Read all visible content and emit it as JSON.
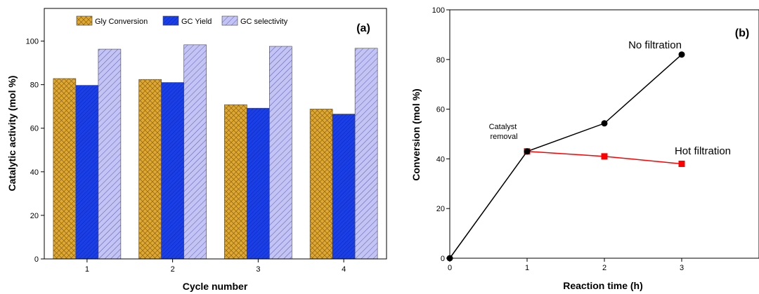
{
  "chart_data": [
    {
      "type": "bar",
      "panel_label": "(a)",
      "categories": [
        "1",
        "2",
        "3",
        "4"
      ],
      "series": [
        {
          "name": "Gly Conversion",
          "values": [
            82.8,
            82.4,
            70.8,
            68.8
          ],
          "color": "#E0A830",
          "pattern": "crosshatch"
        },
        {
          "name": "GC Yield",
          "values": [
            79.7,
            81.0,
            69.2,
            66.5
          ],
          "color": "#1A3FE6",
          "pattern": "diagonal-dense"
        },
        {
          "name": "GC selectivity",
          "values": [
            96.3,
            98.3,
            97.6,
            96.7
          ],
          "color": "#B8B8F0",
          "pattern": "diagonal"
        }
      ],
      "xlabel": "Cycle number",
      "ylabel": "Catalytic activity (mol %)",
      "ylim": [
        0,
        115
      ],
      "yticks": [
        0,
        20,
        40,
        60,
        80,
        100
      ],
      "legend": "top"
    },
    {
      "type": "line",
      "panel_label": "(b)",
      "series": [
        {
          "name": "No filtration",
          "x": [
            0,
            1,
            2,
            3
          ],
          "y": [
            0,
            43,
            54.3,
            82
          ],
          "color": "#000000",
          "marker": "circle"
        },
        {
          "name": "Hot filtration",
          "x": [
            1,
            2,
            3
          ],
          "y": [
            43,
            41,
            38
          ],
          "color": "#FF0000",
          "marker": "square"
        }
      ],
      "annotations": [
        {
          "text": "Catalyst\nremoval"
        }
      ],
      "xlabel": "Reaction time (h)",
      "ylabel": "Conversion (mol %)",
      "xlim": [
        0,
        4
      ],
      "ylim": [
        0,
        100
      ],
      "xticks": [
        0,
        1,
        2,
        3
      ],
      "yticks": [
        0,
        20,
        40,
        60,
        80,
        100
      ]
    }
  ]
}
